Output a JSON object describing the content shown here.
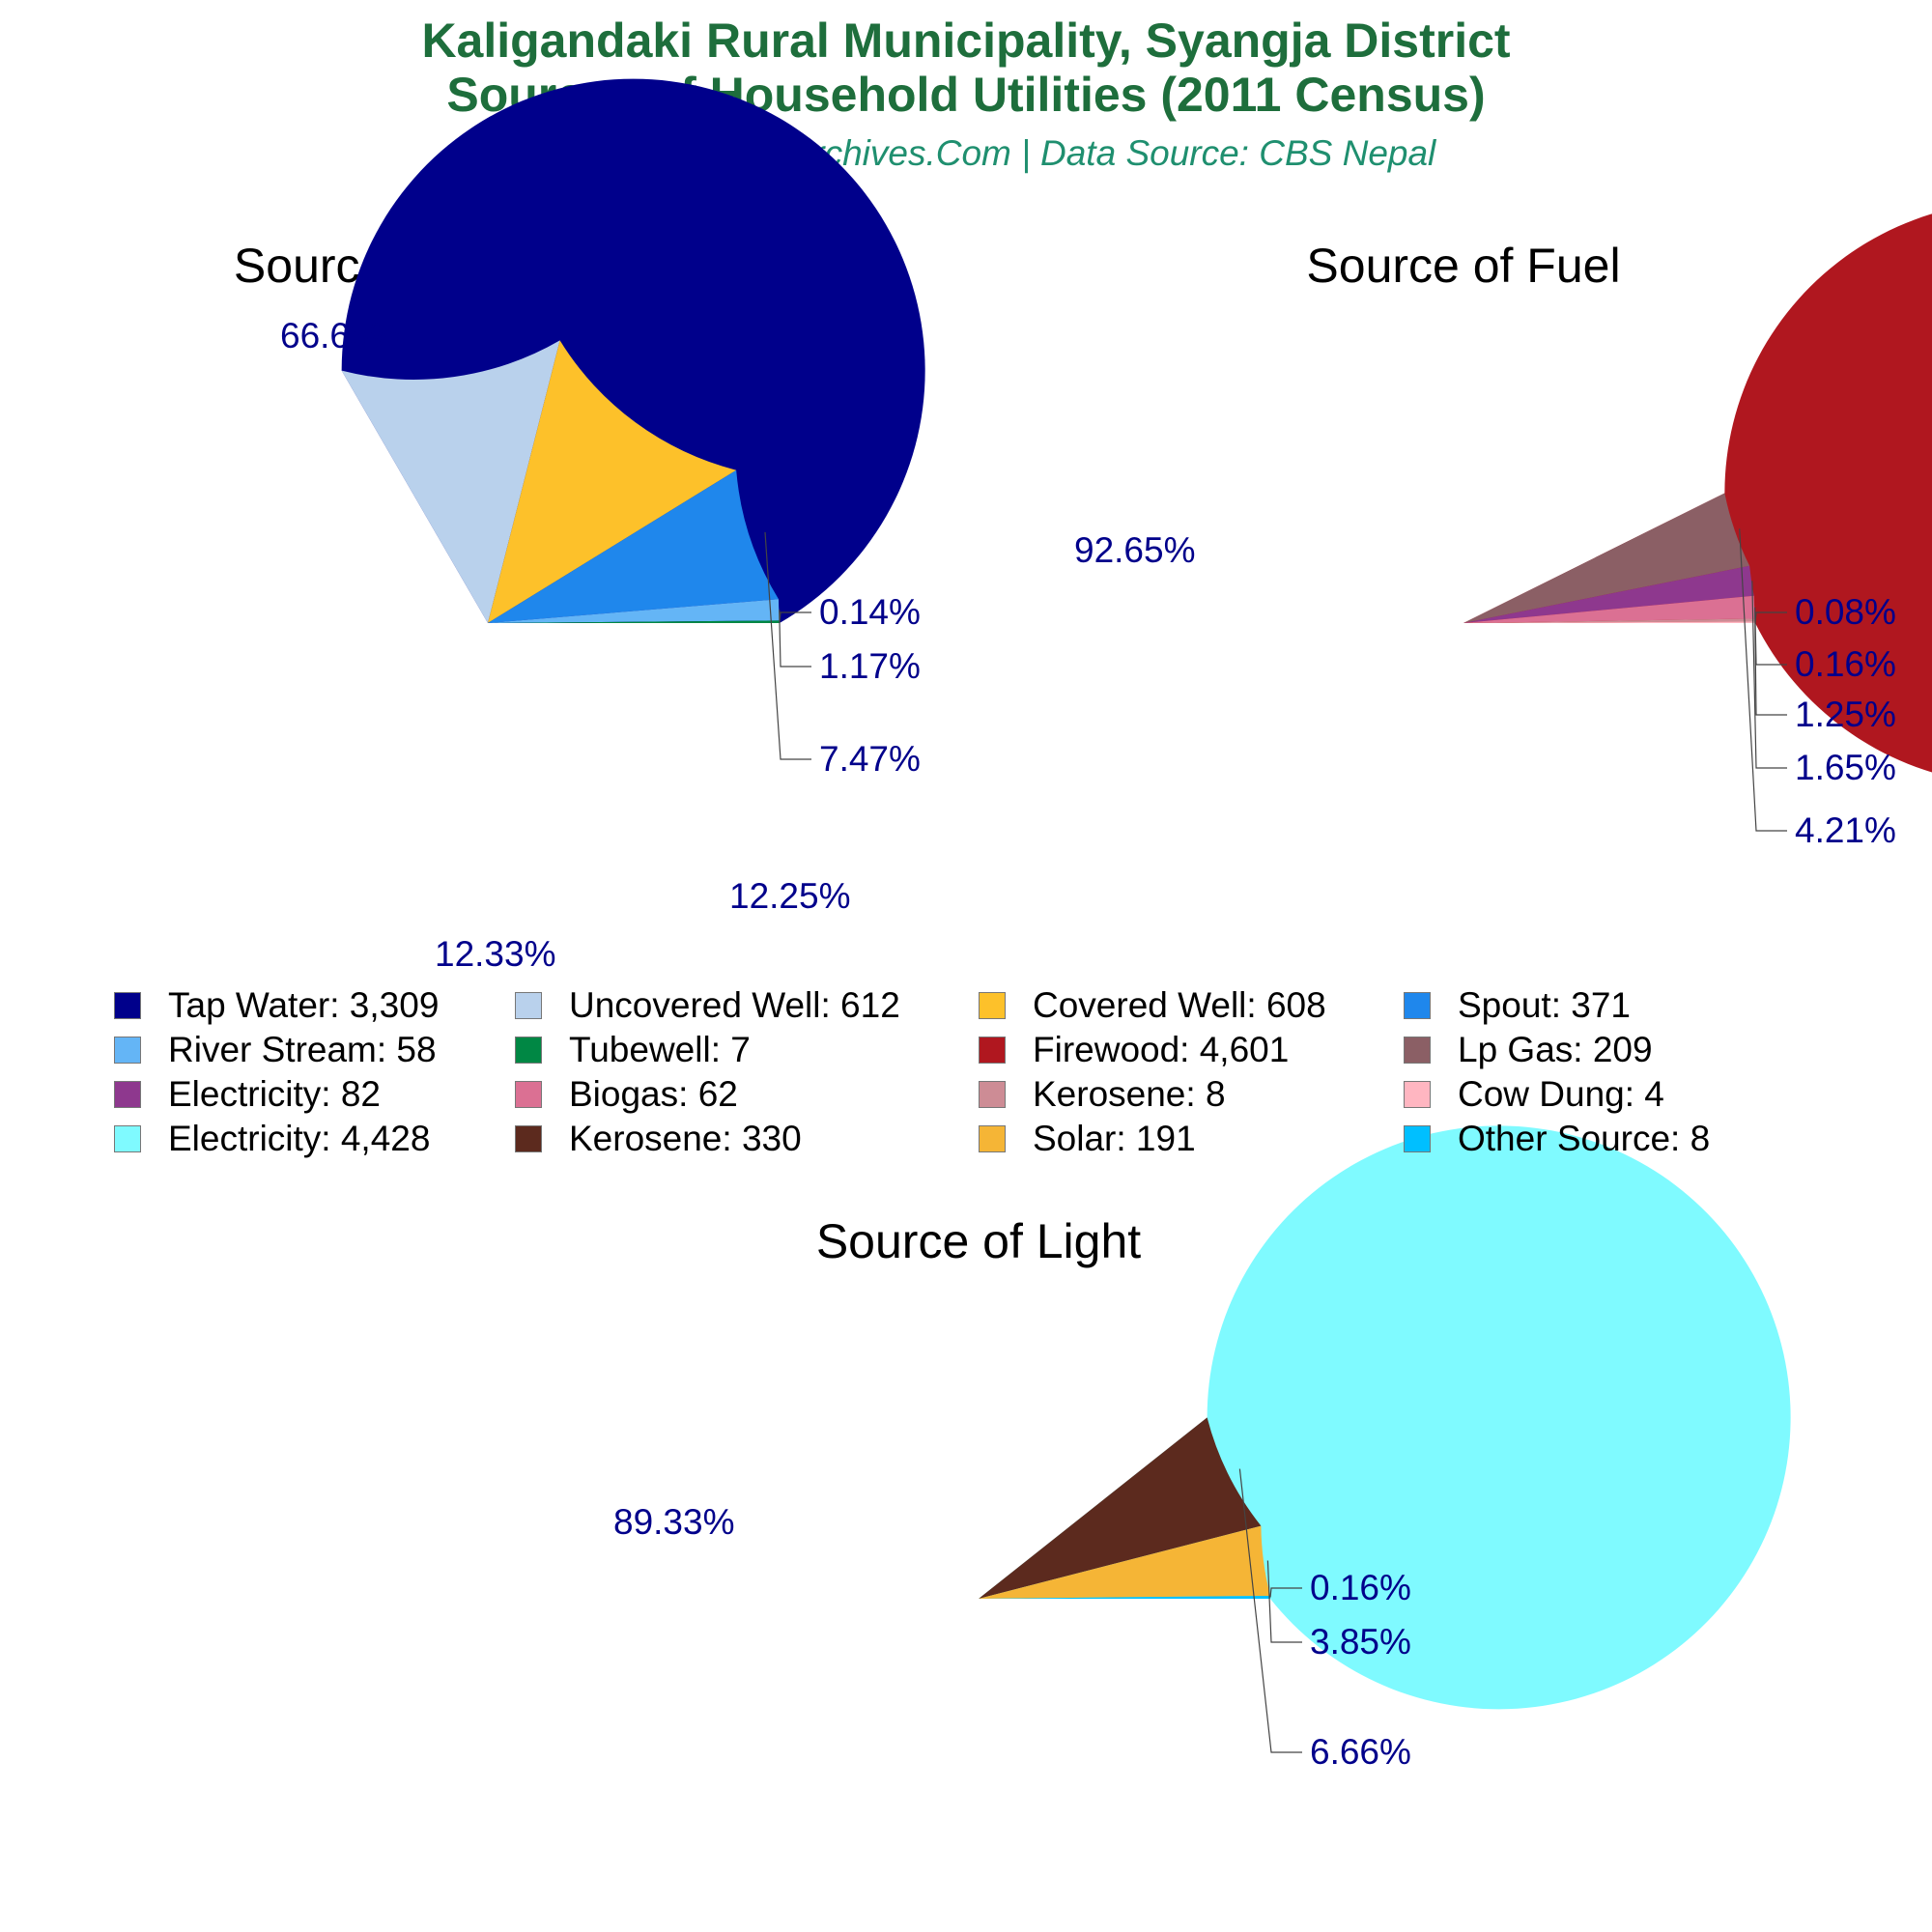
{
  "header": {
    "title_line1": "Kaligandaki Rural Municipality, Syangja District",
    "title_line2": "Sources of Household Utilities (2011 Census)",
    "subtitle": "Copyright © NepalArchives.Com | Data Source: CBS Nepal"
  },
  "chart_data": [
    {
      "type": "pie",
      "title": "Source of Water Supply",
      "slices": [
        {
          "label": "Tap Water",
          "value": 3309,
          "pct_label": "66.65%",
          "color": "#00008b"
        },
        {
          "label": "Uncovered Well",
          "value": 612,
          "pct_label": "12.33%",
          "color": "#b9d1ec"
        },
        {
          "label": "Covered Well",
          "value": 608,
          "pct_label": "12.25%",
          "color": "#fdc12a"
        },
        {
          "label": "Spout",
          "value": 371,
          "pct_label": "7.47%",
          "color": "#1f87ec"
        },
        {
          "label": "River Stream",
          "value": 58,
          "pct_label": "1.17%",
          "color": "#64b5f6"
        },
        {
          "label": "Tubewell",
          "value": 7,
          "pct_label": "0.14%",
          "color": "#008744"
        }
      ]
    },
    {
      "type": "pie",
      "title": "Source of Fuel",
      "slices": [
        {
          "label": "Firewood",
          "value": 4601,
          "pct_label": "92.65%",
          "color": "#b0171f"
        },
        {
          "label": "Lp Gas",
          "value": 209,
          "pct_label": "4.21%",
          "color": "#8b5f65"
        },
        {
          "label": "Electricity",
          "value": 82,
          "pct_label": "1.65%",
          "color": "#8e388e"
        },
        {
          "label": "Biogas",
          "value": 62,
          "pct_label": "1.25%",
          "color": "#db7093"
        },
        {
          "label": "Kerosene",
          "value": 8,
          "pct_label": "0.16%",
          "color": "#cd8c95"
        },
        {
          "label": "Cow Dung",
          "value": 4,
          "pct_label": "0.08%",
          "color": "#ffb6c1"
        }
      ]
    },
    {
      "type": "pie",
      "title": "Source of Light",
      "slices": [
        {
          "label": "Electricity",
          "value": 4428,
          "pct_label": "89.33%",
          "color": "#7ffaff"
        },
        {
          "label": "Kerosene",
          "value": 330,
          "pct_label": "6.66%",
          "color": "#5c2a1e"
        },
        {
          "label": "Solar",
          "value": 191,
          "pct_label": "3.85%",
          "color": "#f5b536"
        },
        {
          "label": "Other Source",
          "value": 8,
          "pct_label": "0.16%",
          "color": "#00bfff"
        }
      ]
    }
  ],
  "legend": {
    "items": [
      {
        "text": "Tap Water: 3,309",
        "color": "#00008b"
      },
      {
        "text": "Uncovered Well: 612",
        "color": "#b9d1ec"
      },
      {
        "text": "Covered Well: 608",
        "color": "#fdc12a"
      },
      {
        "text": "Spout: 371",
        "color": "#1f87ec"
      },
      {
        "text": "River Stream: 58",
        "color": "#64b5f6"
      },
      {
        "text": "Tubewell: 7",
        "color": "#008744"
      },
      {
        "text": "Firewood: 4,601",
        "color": "#b0171f"
      },
      {
        "text": "Lp Gas: 209",
        "color": "#8b5f65"
      },
      {
        "text": "Electricity: 82",
        "color": "#8e388e"
      },
      {
        "text": "Biogas: 62",
        "color": "#db7093"
      },
      {
        "text": "Kerosene: 8",
        "color": "#cd8c95"
      },
      {
        "text": "Cow Dung: 4",
        "color": "#ffb6c1"
      },
      {
        "text": "Electricity: 4,428",
        "color": "#7ffaff"
      },
      {
        "text": "Kerosene: 330",
        "color": "#5c2a1e"
      },
      {
        "text": "Solar: 191",
        "color": "#f5b536"
      },
      {
        "text": "Other Source: 8",
        "color": "#00bfff"
      }
    ]
  },
  "colors": {
    "title": "#1e6e3c",
    "subtitle": "#1f8f6f",
    "pct_label": "#00008b"
  }
}
